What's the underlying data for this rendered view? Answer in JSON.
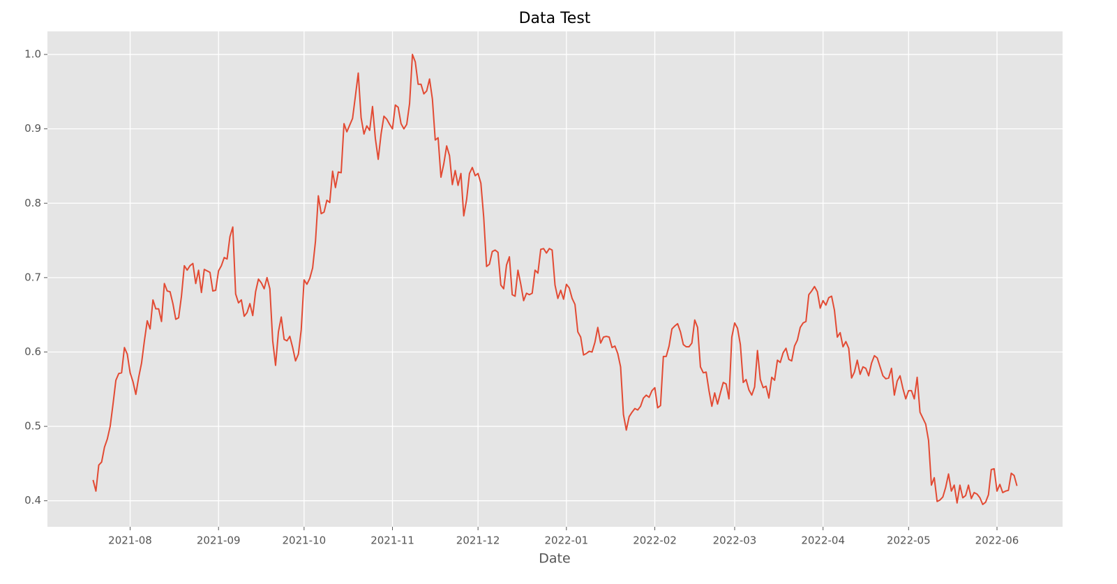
{
  "chart_data": {
    "type": "line",
    "title": "Data Test",
    "x_label": "Date",
    "color": "#e24a33",
    "grid": true,
    "xlim": [
      -16,
      340
    ],
    "xticks": [
      {
        "value": 13,
        "label": "2021-08"
      },
      {
        "value": 44,
        "label": "2021-09"
      },
      {
        "value": 74,
        "label": "2021-10"
      },
      {
        "value": 105,
        "label": "2021-11"
      },
      {
        "value": 135,
        "label": "2021-12"
      },
      {
        "value": 166,
        "label": "2022-01"
      },
      {
        "value": 197,
        "label": "2022-02"
      },
      {
        "value": 225,
        "label": "2022-03"
      },
      {
        "value": 256,
        "label": "2022-04"
      },
      {
        "value": 286,
        "label": "2022-05"
      },
      {
        "value": 317,
        "label": "2022-06"
      }
    ],
    "ylim": [
      0.365,
      1.031
    ],
    "yticks": [
      0.4,
      0.5,
      0.6,
      0.7,
      0.8,
      0.9,
      {
        "value": 1,
        "label": "1.0"
      }
    ],
    "values": [
      0.428,
      0.413,
      0.448,
      0.452,
      0.472,
      0.483,
      0.5,
      0.53,
      0.562,
      0.571,
      0.572,
      0.606,
      0.597,
      0.572,
      0.56,
      0.543,
      0.566,
      0.585,
      0.615,
      0.642,
      0.631,
      0.67,
      0.658,
      0.658,
      0.641,
      0.692,
      0.682,
      0.681,
      0.665,
      0.644,
      0.646,
      0.675,
      0.716,
      0.71,
      0.716,
      0.719,
      0.692,
      0.71,
      0.68,
      0.711,
      0.709,
      0.707,
      0.682,
      0.683,
      0.709,
      0.716,
      0.727,
      0.725,
      0.755,
      0.768,
      0.678,
      0.666,
      0.67,
      0.648,
      0.653,
      0.665,
      0.649,
      0.681,
      0.698,
      0.693,
      0.685,
      0.7,
      0.685,
      0.615,
      0.582,
      0.627,
      0.647,
      0.617,
      0.615,
      0.621,
      0.606,
      0.588,
      0.597,
      0.63,
      0.697,
      0.691,
      0.699,
      0.713,
      0.749,
      0.81,
      0.786,
      0.788,
      0.804,
      0.801,
      0.843,
      0.821,
      0.842,
      0.841,
      0.907,
      0.896,
      0.905,
      0.914,
      0.944,
      0.975,
      0.915,
      0.893,
      0.904,
      0.898,
      0.93,
      0.887,
      0.859,
      0.893,
      0.917,
      0.913,
      0.906,
      0.9,
      0.932,
      0.929,
      0.907,
      0.9,
      0.906,
      0.934,
      1.0,
      0.99,
      0.96,
      0.96,
      0.947,
      0.951,
      0.967,
      0.94,
      0.885,
      0.888,
      0.835,
      0.853,
      0.877,
      0.864,
      0.825,
      0.844,
      0.824,
      0.84,
      0.783,
      0.805,
      0.84,
      0.848,
      0.837,
      0.84,
      0.827,
      0.781,
      0.715,
      0.718,
      0.735,
      0.737,
      0.734,
      0.69,
      0.685,
      0.717,
      0.728,
      0.677,
      0.675,
      0.71,
      0.691,
      0.669,
      0.679,
      0.677,
      0.679,
      0.71,
      0.706,
      0.738,
      0.739,
      0.733,
      0.739,
      0.737,
      0.69,
      0.672,
      0.683,
      0.671,
      0.691,
      0.686,
      0.672,
      0.664,
      0.627,
      0.62,
      0.596,
      0.598,
      0.601,
      0.6,
      0.613,
      0.633,
      0.612,
      0.62,
      0.621,
      0.62,
      0.606,
      0.608,
      0.598,
      0.58,
      0.516,
      0.495,
      0.513,
      0.519,
      0.524,
      0.522,
      0.527,
      0.538,
      0.542,
      0.539,
      0.548,
      0.552,
      0.525,
      0.528,
      0.594,
      0.594,
      0.608,
      0.631,
      0.635,
      0.638,
      0.627,
      0.61,
      0.607,
      0.607,
      0.612,
      0.643,
      0.633,
      0.58,
      0.572,
      0.573,
      0.548,
      0.527,
      0.545,
      0.53,
      0.545,
      0.559,
      0.557,
      0.537,
      0.62,
      0.639,
      0.632,
      0.61,
      0.559,
      0.563,
      0.549,
      0.542,
      0.553,
      0.602,
      0.563,
      0.552,
      0.554,
      0.538,
      0.566,
      0.562,
      0.589,
      0.586,
      0.599,
      0.605,
      0.59,
      0.588,
      0.608,
      0.616,
      0.633,
      0.639,
      0.641,
      0.677,
      0.682,
      0.688,
      0.681,
      0.659,
      0.669,
      0.663,
      0.673,
      0.675,
      0.656,
      0.62,
      0.626,
      0.607,
      0.614,
      0.605,
      0.565,
      0.573,
      0.589,
      0.57,
      0.58,
      0.578,
      0.568,
      0.585,
      0.595,
      0.592,
      0.58,
      0.568,
      0.564,
      0.565,
      0.578,
      0.542,
      0.561,
      0.568,
      0.551,
      0.537,
      0.548,
      0.548,
      0.537,
      0.566,
      0.519,
      0.511,
      0.503,
      0.481,
      0.421,
      0.431,
      0.399,
      0.401,
      0.405,
      0.418,
      0.436,
      0.413,
      0.421,
      0.397,
      0.421,
      0.404,
      0.407,
      0.421,
      0.403,
      0.411,
      0.409,
      0.404,
      0.395,
      0.398,
      0.408,
      0.442,
      0.443,
      0.413,
      0.422,
      0.411,
      0.413,
      0.414,
      0.437,
      0.434,
      0.42
    ]
  }
}
